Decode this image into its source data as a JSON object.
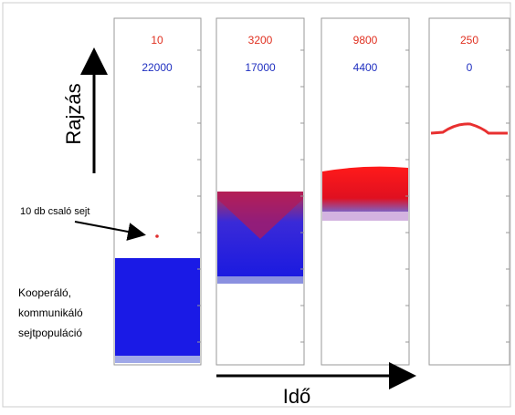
{
  "axes": {
    "vertical": "Rajzás",
    "horizontal": "Idő"
  },
  "annotations": {
    "cheater": "10 db csaló sejt",
    "population": [
      "Kooperáló,",
      "kommunikáló",
      "sejtpopuláció"
    ]
  },
  "panels": [
    {
      "red": 10,
      "blue": 22000
    },
    {
      "red": 3200,
      "blue": 17000
    },
    {
      "red": 9800,
      "blue": 4400
    },
    {
      "red": 250,
      "blue": 0
    }
  ]
}
